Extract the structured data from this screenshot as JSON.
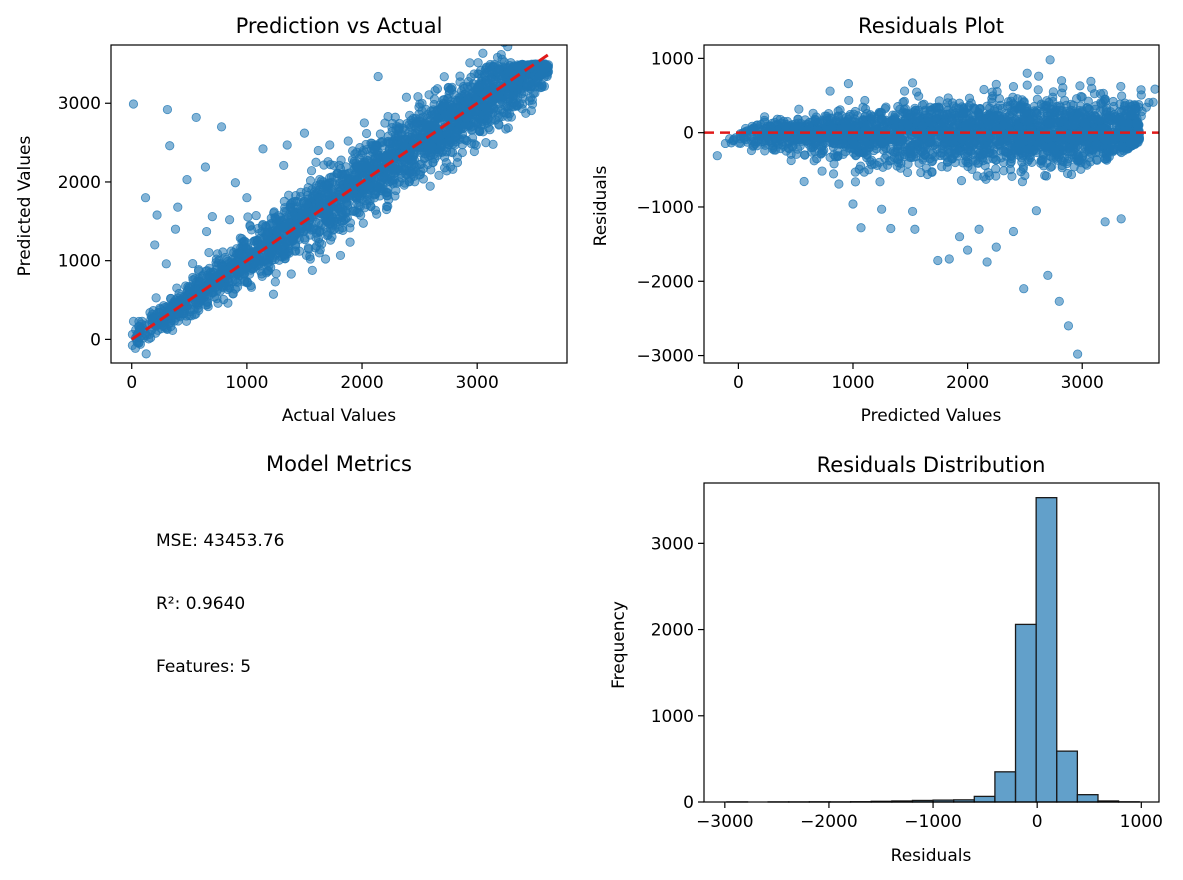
{
  "colors": {
    "points": "#1f77b4",
    "reference_line": "#e01a1a",
    "bar_edge": "#1a1a1a",
    "bar_fill": "#1f77b4"
  },
  "chart_data": [
    {
      "type": "scatter",
      "title": "Prediction vs Actual",
      "xlabel": "Actual Values",
      "ylabel": "Predicted Values",
      "xlim": [
        -180,
        3780
      ],
      "ylim": [
        -300,
        3740
      ],
      "xticks": [
        0,
        1000,
        2000,
        3000
      ],
      "yticks": [
        0,
        1000,
        2000,
        3000
      ],
      "reference_line": {
        "style": "dashed",
        "from": [
          0,
          0
        ],
        "to": [
          3620,
          3620
        ]
      },
      "points_description": "about 8000 points clustered along y = x",
      "band_spread": 220,
      "outliers": [
        [
          15,
          2990
        ],
        [
          310,
          2920
        ],
        [
          560,
          2820
        ],
        [
          780,
          2700
        ],
        [
          330,
          2460
        ],
        [
          480,
          2030
        ],
        [
          640,
          2190
        ],
        [
          900,
          1990
        ],
        [
          1140,
          2420
        ],
        [
          2140,
          3340
        ],
        [
          120,
          1800
        ],
        [
          220,
          1580
        ],
        [
          400,
          1680
        ],
        [
          700,
          1560
        ],
        [
          1350,
          2470
        ],
        [
          1500,
          2620
        ],
        [
          1620,
          2400
        ],
        [
          1720,
          2470
        ],
        [
          1880,
          2520
        ],
        [
          2020,
          2750
        ],
        [
          1320,
          2210
        ],
        [
          1600,
          2250
        ],
        [
          2320,
          2680
        ],
        [
          2600,
          2900
        ],
        [
          200,
          1200
        ],
        [
          380,
          1400
        ],
        [
          650,
          1370
        ],
        [
          850,
          1520
        ],
        [
          1000,
          1800
        ],
        [
          300,
          960
        ]
      ]
    },
    {
      "type": "scatter",
      "title": "Residuals Plot",
      "xlabel": "Predicted Values",
      "ylabel": "Residuals",
      "xlim": [
        -300,
        3670
      ],
      "ylim": [
        -3100,
        1180
      ],
      "xticks": [
        0,
        1000,
        2000,
        3000
      ],
      "yticks": [
        1000,
        0,
        -1000,
        -2000,
        -3000
      ],
      "reference_line": {
        "style": "dashed",
        "y": 0
      },
      "points_description": "residual = predicted - actual, dense band around 0",
      "outliers": [
        [
          2720,
          980
        ],
        [
          2520,
          800
        ],
        [
          2620,
          760
        ],
        [
          2820,
          700
        ],
        [
          2400,
          620
        ],
        [
          800,
          560
        ],
        [
          1450,
          560
        ],
        [
          2980,
          630
        ],
        [
          3340,
          -1160
        ],
        [
          2960,
          -2980
        ],
        [
          2880,
          -2600
        ],
        [
          2800,
          -2270
        ],
        [
          2700,
          -1920
        ],
        [
          2490,
          -2100
        ],
        [
          2000,
          -1580
        ],
        [
          2170,
          -1740
        ],
        [
          1740,
          -1720
        ],
        [
          1840,
          -1700
        ],
        [
          1930,
          -1400
        ],
        [
          2250,
          -1540
        ],
        [
          1070,
          -1280
        ],
        [
          1330,
          -1290
        ],
        [
          1540,
          -1300
        ],
        [
          2100,
          -1300
        ],
        [
          2400,
          -1330
        ],
        [
          2600,
          -1050
        ],
        [
          3200,
          -1200
        ],
        [
          1000,
          -960
        ],
        [
          1250,
          -1030
        ],
        [
          1520,
          -1060
        ]
      ]
    },
    {
      "type": "table",
      "title": "Model Metrics",
      "lines": [
        "MSE: 43453.76",
        "R²: 0.9640",
        "Features: 5"
      ]
    },
    {
      "type": "bar",
      "title": "Residuals Distribution",
      "xlabel": "Residuals",
      "ylabel": "Frequency",
      "xlim": [
        -3200,
        1170
      ],
      "ylim": [
        0,
        3700
      ],
      "xticks": [
        -3000,
        -2000,
        -1000,
        0,
        1000
      ],
      "yticks": [
        0,
        1000,
        2000,
        3000
      ],
      "bin_edges": [
        -2980,
        -2782,
        -2584,
        -2386,
        -2188,
        -1990,
        -1792,
        -1594,
        -1396,
        -1198,
        -1000,
        -802,
        -604,
        -406,
        -208,
        -10,
        188,
        386,
        584,
        782,
        980
      ],
      "values": [
        1,
        0,
        1,
        1,
        2,
        1,
        3,
        8,
        12,
        18,
        22,
        25,
        65,
        350,
        2060,
        3530,
        590,
        85,
        12,
        2
      ]
    }
  ]
}
